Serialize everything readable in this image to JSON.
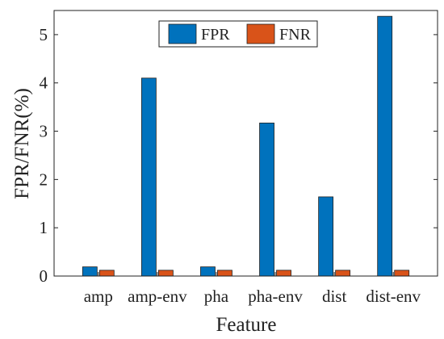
{
  "chart_data": {
    "type": "bar",
    "title": "",
    "xlabel": "Feature",
    "ylabel": "FPR/FNR(%)",
    "categories": [
      "amp",
      "amp-env",
      "pha",
      "pha-env",
      "dist",
      "dist-env"
    ],
    "series": [
      {
        "name": "FPR",
        "values": [
          0.19,
          4.1,
          0.19,
          3.17,
          1.64,
          5.38
        ],
        "color": "#0072BD"
      },
      {
        "name": "FNR",
        "values": [
          0.12,
          0.12,
          0.12,
          0.12,
          0.12,
          0.12
        ],
        "color": "#D95319"
      }
    ],
    "ylim": [
      0,
      5.5
    ],
    "yticks": [
      "0",
      "1",
      "2",
      "3",
      "4",
      "5"
    ],
    "grid": false,
    "legend": "top-center"
  }
}
